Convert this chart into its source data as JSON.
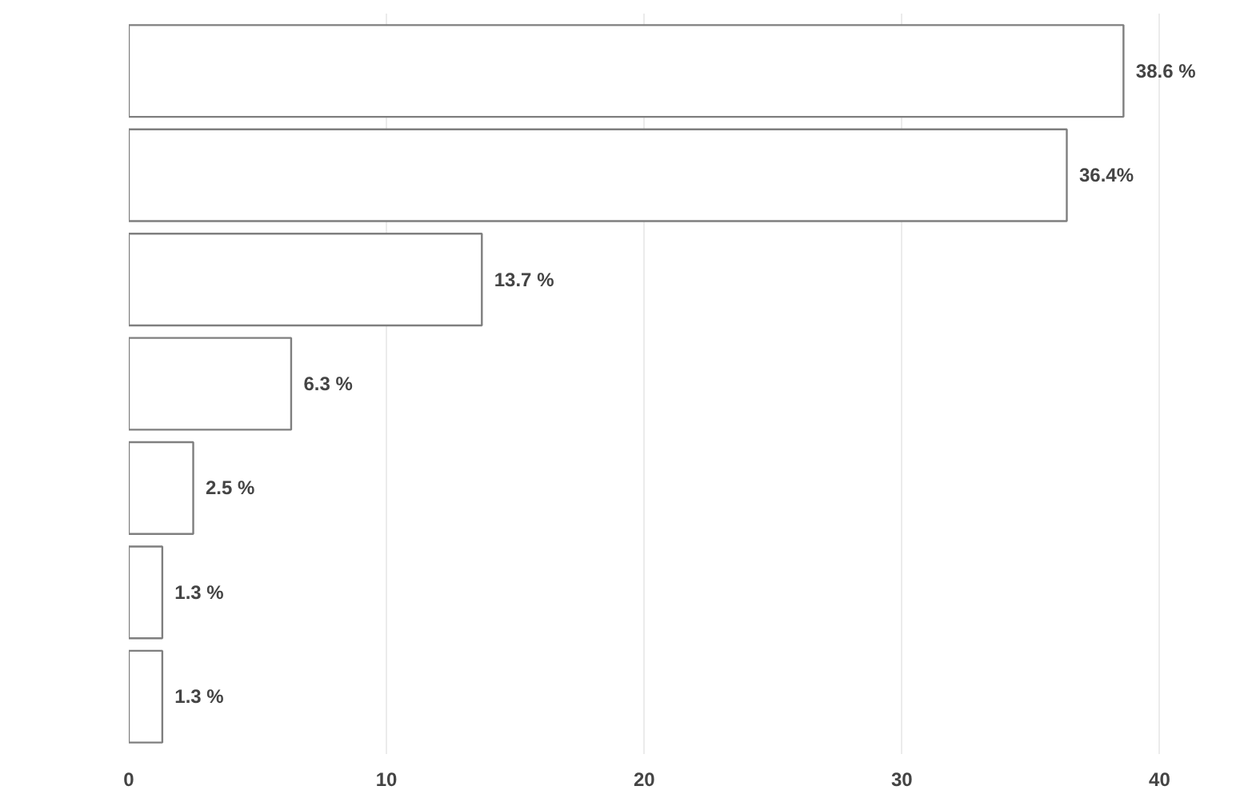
{
  "chart_data": {
    "type": "bar",
    "orientation": "horizontal",
    "categories": [
      null,
      null,
      null,
      null,
      null,
      null,
      null
    ],
    "values": [
      38.6,
      36.4,
      13.7,
      6.3,
      2.5,
      1.3,
      1.3
    ],
    "value_labels": [
      "38.6 %",
      "36.4%",
      "13.7 %",
      "6.3 %",
      "2.5 %",
      "1.3 %",
      "1.3 %"
    ],
    "color": "#ffffff",
    "xlim": [
      0,
      40
    ],
    "xticks": [
      0,
      10,
      20,
      30,
      40
    ],
    "grid": "x"
  }
}
